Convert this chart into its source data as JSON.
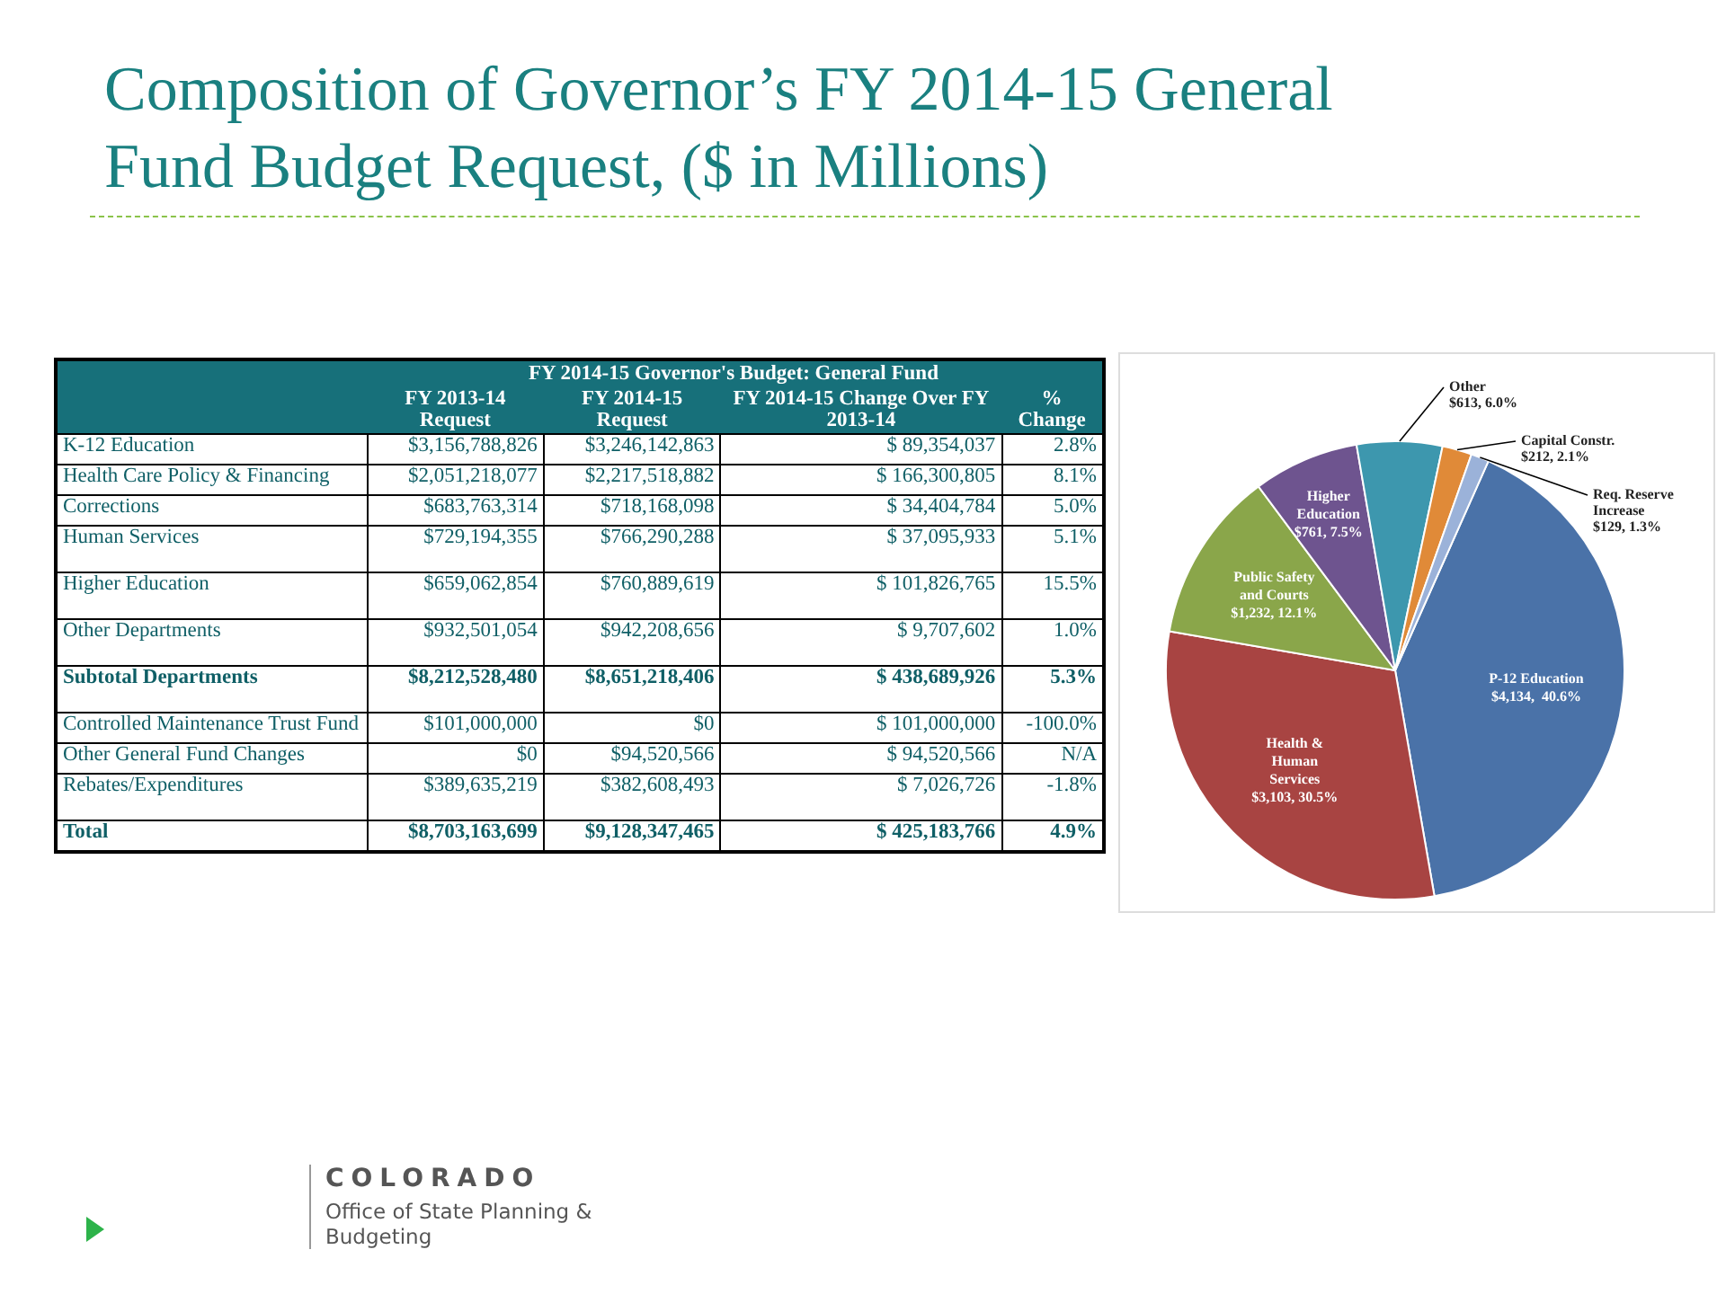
{
  "chart_data": [
    {
      "type": "other",
      "title": "Composition of Governor’s FY 2014-15 General Fund Budget Request, ($ in Millions)",
      "subtitle": "FY 2014-15 Governor's Budget:  General Fund",
      "categories": [
        "K-12 Education",
        "Health Care Policy & Financing",
        "Corrections",
        "Human Services",
        "Higher Education",
        "Other Departments",
        "Subtotal Departments",
        "Controlled Maintenance Trust Fund",
        "Other General Fund Changes",
        "Rebates/Expenditures",
        "Total"
      ],
      "series": [
        {
          "name": "FY 2013-14 Request",
          "values": [
            3156788826,
            2051218077,
            683763314,
            729194355,
            659062854,
            932501054,
            8212528480,
            101000000,
            0,
            389635219,
            8703163699
          ],
          "value_labels": [
            "$3,156,788,826",
            "$2,051,218,077",
            "$683,763,314",
            "$729,194,355",
            "$659,062,854",
            "$932,501,054",
            "$8,212,528,480",
            "$101,000,000",
            "$0",
            "$389,635,219",
            "$8,703,163,699"
          ]
        },
        {
          "name": "FY 2014-15 Request",
          "values": [
            3246142863,
            2217518882,
            718168098,
            766290288,
            760889619,
            942208656,
            8651218406,
            0,
            94520566,
            382608493,
            9128347465
          ],
          "value_labels": [
            "$3,246,142,863",
            "$2,217,518,882",
            "$718,168,098",
            "$766,290,288",
            "$760,889,619",
            "$942,208,656",
            "$8,651,218,406",
            "$0",
            "$94,520,566",
            "$382,608,493",
            "$9,128,347,465"
          ]
        },
        {
          "name": "FY 2014-15 Change Over FY 2013-14",
          "values": [
            89354037,
            166300805,
            34404784,
            37095933,
            101826765,
            9707602,
            438689926,
            101000000,
            94520566,
            7026726,
            425183766
          ],
          "value_labels": [
            "$ 89,354,037",
            "$ 166,300,805",
            "$ 34,404,784",
            "$ 37,095,933",
            "$ 101,826,765",
            "$ 9,707,602",
            "$ 438,689,926",
            "$ 101,000,000",
            "$ 94,520,566",
            "$ 7,026,726",
            "$ 425,183,766"
          ]
        },
        {
          "name": "% Change",
          "values": [
            2.8,
            8.1,
            5.0,
            5.1,
            15.5,
            1.0,
            5.3,
            -100.0,
            null,
            -1.8,
            4.9
          ],
          "value_labels": [
            "2.8%",
            "8.1%",
            "5.0%",
            "5.1%",
            "15.5%",
            "1.0%",
            "5.3%",
            "-100.0%",
            "N/A",
            "-1.8%",
            "4.9%"
          ]
        }
      ],
      "annotations": [
        "COLORADO",
        "Office of State Planning & Budgeting"
      ]
    },
    {
      "type": "pie",
      "categories": [
        "P-12 Education",
        "Health & Human Services",
        "Public Safety and Courts",
        "Higher Education",
        "Other",
        "Capital Constr.",
        "Req. Reserve Increase"
      ],
      "values": [
        4134,
        3103,
        1232,
        761,
        613,
        212,
        129
      ],
      "value_labels": [
        "$4,134,  40.6%",
        "$3,103, 30.5%",
        "$1,232, 12.1%",
        "$761, 7.5%",
        "$613, 6.0%",
        "$212, 2.1%",
        "$129, 1.3%"
      ],
      "colors": [
        "#4a72a8",
        "#a84442",
        "#8aa64a",
        "#6e548f",
        "#3d97ae",
        "#e08a38",
        "#9bb2d9"
      ]
    }
  ]
}
